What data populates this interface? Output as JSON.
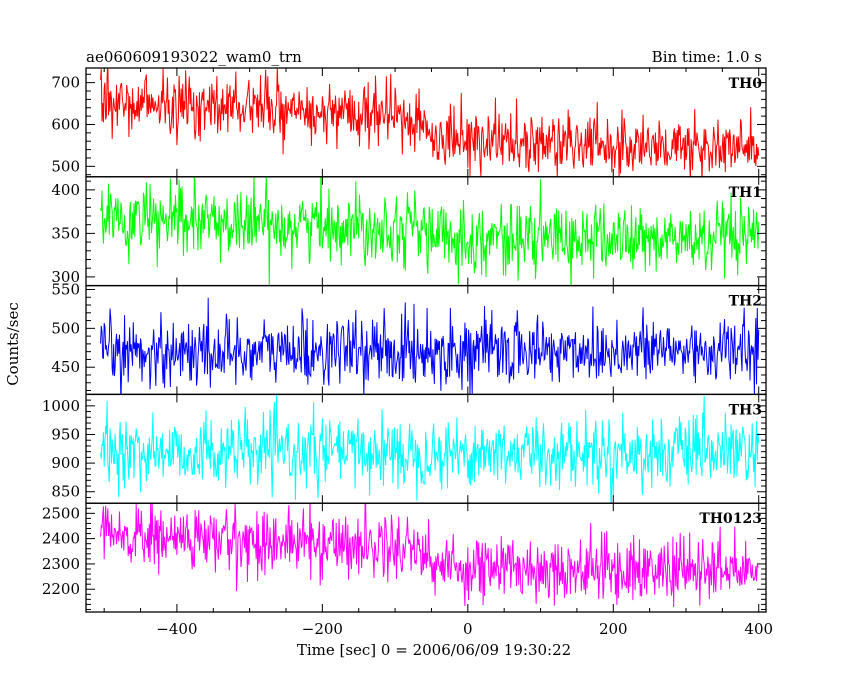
{
  "header": {
    "title": "ae060609193022_wam0_trn",
    "bin_time": "Bin time: 1.0 s"
  },
  "chart_data": {
    "type": "line",
    "xlabel": "Time [sec] 0 = 2006/06/09 19:30:22",
    "ylabel": "Counts/sec",
    "xlim": [
      -525,
      410
    ],
    "xticks": [
      -400,
      -200,
      0,
      200,
      400
    ],
    "x_minor_step": 50,
    "x_start": -505,
    "x_end": 400,
    "bin_time_s": 1.0,
    "grid": false,
    "panels": [
      {
        "name": "TH0",
        "color": "#ff0000",
        "ylim": [
          475,
          735
        ],
        "yticks": [
          500,
          600,
          700
        ],
        "y_minor_step": 20,
        "trend": [
          [
            -505,
            655
          ],
          [
            -300,
            640
          ],
          [
            -65,
            612
          ],
          [
            -55,
            575
          ],
          [
            100,
            557
          ],
          [
            400,
            540
          ]
        ],
        "noise": 38
      },
      {
        "name": "TH1",
        "color": "#00ff00",
        "ylim": [
          290,
          415
        ],
        "yticks": [
          300,
          350,
          400
        ],
        "y_minor_step": 10,
        "trend": [
          [
            -505,
            365
          ],
          [
            -60,
            358
          ],
          [
            -50,
            345
          ],
          [
            400,
            342
          ]
        ],
        "noise": 20
      },
      {
        "name": "TH2",
        "color": "#0000ff",
        "ylim": [
          415,
          555
        ],
        "yticks": [
          450,
          500,
          550
        ],
        "y_minor_step": 10,
        "trend": [
          [
            -505,
            470
          ],
          [
            400,
            472
          ]
        ],
        "noise": 22
      },
      {
        "name": "TH3",
        "color": "#00ffff",
        "ylim": [
          830,
          1020
        ],
        "yticks": [
          850,
          900,
          950,
          1000
        ],
        "y_minor_step": 10,
        "trend": [
          [
            -505,
            920
          ],
          [
            400,
            918
          ]
        ],
        "noise": 30
      },
      {
        "name": "TH0123",
        "color": "#ff00ff",
        "ylim": [
          2110,
          2540
        ],
        "yticks": [
          2200,
          2300,
          2400,
          2500
        ],
        "y_minor_step": 20,
        "trend": [
          [
            -505,
            2410
          ],
          [
            -60,
            2370
          ],
          [
            -50,
            2290
          ],
          [
            400,
            2270
          ]
        ],
        "noise": 65
      }
    ]
  }
}
